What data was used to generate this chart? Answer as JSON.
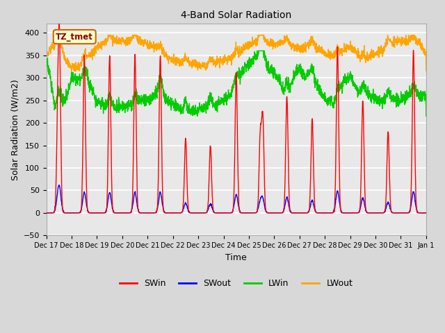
{
  "title": "4-Band Solar Radiation",
  "xlabel": "Time",
  "ylabel": "Solar Radiation (W/m2)",
  "ylim": [
    -50,
    420
  ],
  "yticks": [
    -50,
    0,
    50,
    100,
    150,
    200,
    250,
    300,
    350,
    400
  ],
  "colors": {
    "SWin": "#ff0000",
    "SWout": "#0000ff",
    "LWin": "#00cc00",
    "LWout": "#ffa500"
  },
  "fig_facecolor": "#d8d8d8",
  "axes_facecolor": "#e8e8e8",
  "label_box": {
    "text": "TZ_tmet",
    "facecolor": "#ffffcc",
    "edgecolor": "#cc6600",
    "textcolor": "#880000"
  },
  "x_tick_labels": [
    "Dec 17",
    "Dec 18",
    "Dec 19",
    "Dec 20",
    "Dec 21",
    "Dec 22",
    "Dec 23",
    "Dec 24",
    "Dec 25",
    "Dec 26",
    "Dec 27",
    "Dec 28",
    "Dec 29",
    "Dec 30",
    "Dec 31",
    "Jan 1"
  ],
  "n_days": 15
}
